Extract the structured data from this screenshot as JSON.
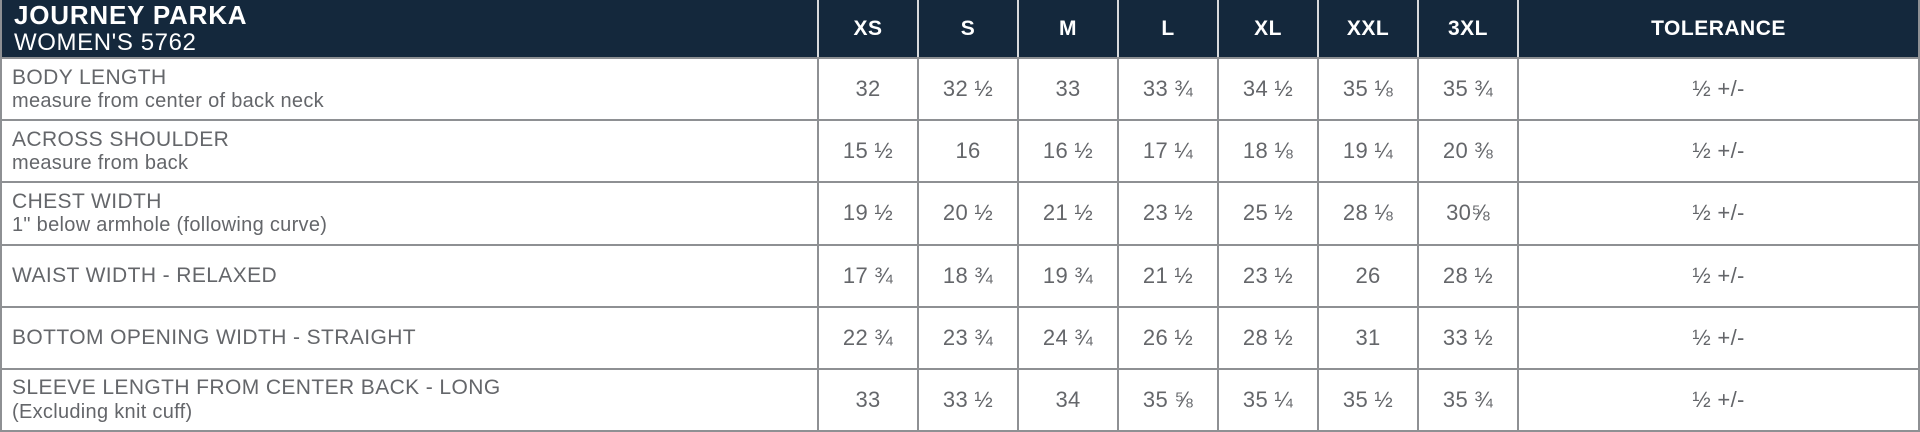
{
  "colors": {
    "header_bg": "#14283C",
    "header_text": "#FFFFFF",
    "header_divider": "#D8DADC",
    "body_text": "#64666A",
    "border": "#8E9093"
  },
  "header": {
    "product_name": "JOURNEY PARKA",
    "product_sub": "WOMEN'S 5762",
    "sizes": [
      "XS",
      "S",
      "M",
      "L",
      "XL",
      "XXL",
      "3XL"
    ],
    "tolerance_label": "TOLERANCE"
  },
  "rows": [
    {
      "label": "BODY LENGTH",
      "sublabel": "measure from center of back neck",
      "values": [
        "32",
        "32 ½",
        "33",
        "33 ¾",
        "34 ½",
        "35 ⅛",
        "35 ¾"
      ],
      "tolerance": "½ +/-"
    },
    {
      "label": "ACROSS SHOULDER",
      "sublabel": "measure from back",
      "values": [
        "15 ½",
        "16",
        "16 ½",
        "17 ¼",
        "18 ⅛",
        "19 ¼",
        "20 ⅜"
      ],
      "tolerance": "½ +/-"
    },
    {
      "label": "CHEST WIDTH",
      "sublabel": "1\" below armhole (following curve)",
      "values": [
        "19 ½",
        "20 ½",
        "21 ½",
        "23 ½",
        "25 ½",
        "28 ⅛",
        "30⅝"
      ],
      "tolerance": "½ +/-"
    },
    {
      "label": "WAIST WIDTH - RELAXED",
      "sublabel": "",
      "values": [
        "17 ¾",
        "18 ¾",
        "19 ¾",
        "21 ½",
        "23 ½",
        "26",
        "28 ½"
      ],
      "tolerance": "½ +/-"
    },
    {
      "label": "BOTTOM OPENING WIDTH - STRAIGHT",
      "sublabel": "",
      "values": [
        "22 ¾",
        "23 ¾",
        "24 ¾",
        "26 ½",
        "28 ½",
        "31",
        "33 ½"
      ],
      "tolerance": "½ +/-"
    },
    {
      "label": "SLEEVE LENGTH FROM CENTER BACK - LONG",
      "sublabel": "(Excluding knit cuff)",
      "values": [
        "33",
        "33 ½",
        "34",
        "35 ⅝",
        "35 ¼",
        "35 ½",
        "35 ¾"
      ],
      "tolerance": "½ +/-"
    }
  ]
}
